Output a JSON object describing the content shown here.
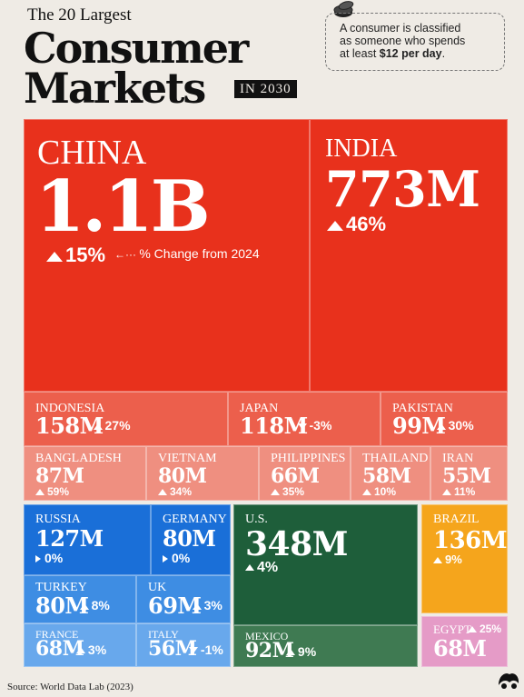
{
  "header": {
    "title_small": "The 20 Largest",
    "title_line1": "Consumer",
    "title_line2": "Markets",
    "title_year": "IN 2030",
    "note_line1": "A consumer is classified",
    "note_line2": "as someone who spends",
    "note_line3_prefix": "at least ",
    "note_line3_bold": "$12 per day",
    "note_line3_suffix": "."
  },
  "legend_note": "% Change from 2024",
  "source": "Source: World Data Lab (2023)",
  "colors": {
    "asia": "#e8311c",
    "asia_light": "#ec5f4c",
    "asia_lighter": "#ef8f80",
    "europe": "#1a6fd8",
    "europe_light": "#3e8de3",
    "europe_lighter": "#68a8ec",
    "north_america": "#1e5e3a",
    "north_america_light": "#3f7a52",
    "south_america": "#f5a51c",
    "africa": "#e59bc7"
  },
  "chart_data": {
    "type": "treemap",
    "title": "The 20 Largest Consumer Markets IN 2030",
    "unit": "consumers",
    "change_label": "% Change from 2024",
    "items": [
      {
        "name": "CHINA",
        "value_label": "1.1B",
        "value": 1100000000,
        "change_label": "15%",
        "change": 15,
        "direction": "up"
      },
      {
        "name": "INDIA",
        "value_label": "773M",
        "value": 773000000,
        "change_label": "46%",
        "change": 46,
        "direction": "up"
      },
      {
        "name": "INDONESIA",
        "value_label": "158M",
        "value": 158000000,
        "change_label": "27%",
        "change": 27,
        "direction": "up"
      },
      {
        "name": "JAPAN",
        "value_label": "118M",
        "value": 118000000,
        "change_label": "-3%",
        "change": -3,
        "direction": "down"
      },
      {
        "name": "PAKISTAN",
        "value_label": "99M",
        "value": 99000000,
        "change_label": "30%",
        "change": 30,
        "direction": "up"
      },
      {
        "name": "BANGLADESH",
        "value_label": "87M",
        "value": 87000000,
        "change_label": "59%",
        "change": 59,
        "direction": "up"
      },
      {
        "name": "VIETNAM",
        "value_label": "80M",
        "value": 80000000,
        "change_label": "34%",
        "change": 34,
        "direction": "up"
      },
      {
        "name": "PHILIPPINES",
        "value_label": "66M",
        "value": 66000000,
        "change_label": "35%",
        "change": 35,
        "direction": "up"
      },
      {
        "name": "THAILAND",
        "value_label": "58M",
        "value": 58000000,
        "change_label": "10%",
        "change": 10,
        "direction": "up"
      },
      {
        "name": "IRAN",
        "value_label": "55M",
        "value": 55000000,
        "change_label": "11%",
        "change": 11,
        "direction": "up"
      },
      {
        "name": "RUSSIA",
        "value_label": "127M",
        "value": 127000000,
        "change_label": "0%",
        "change": 0,
        "direction": "flat"
      },
      {
        "name": "GERMANY",
        "value_label": "80M",
        "value": 80000000,
        "change_label": "0%",
        "change": 0,
        "direction": "flat"
      },
      {
        "name": "TURKEY",
        "value_label": "80M",
        "value": 80000000,
        "change_label": "8%",
        "change": 8,
        "direction": "up"
      },
      {
        "name": "UK",
        "value_label": "69M",
        "value": 69000000,
        "change_label": "3%",
        "change": 3,
        "direction": "up"
      },
      {
        "name": "FRANCE",
        "value_label": "68M",
        "value": 68000000,
        "change_label": "3%",
        "change": 3,
        "direction": "up"
      },
      {
        "name": "ITALY",
        "value_label": "56M",
        "value": 56000000,
        "change_label": "-1%",
        "change": -1,
        "direction": "down"
      },
      {
        "name": "U.S.",
        "value_label": "348M",
        "value": 348000000,
        "change_label": "4%",
        "change": 4,
        "direction": "up"
      },
      {
        "name": "MEXICO",
        "value_label": "92M",
        "value": 92000000,
        "change_label": "9%",
        "change": 9,
        "direction": "up"
      },
      {
        "name": "BRAZIL",
        "value_label": "136M",
        "value": 136000000,
        "change_label": "9%",
        "change": 9,
        "direction": "up"
      },
      {
        "name": "EGYPT",
        "value_label": "68M",
        "value": 68000000,
        "change_label": "25%",
        "change": 25,
        "direction": "up"
      }
    ]
  }
}
